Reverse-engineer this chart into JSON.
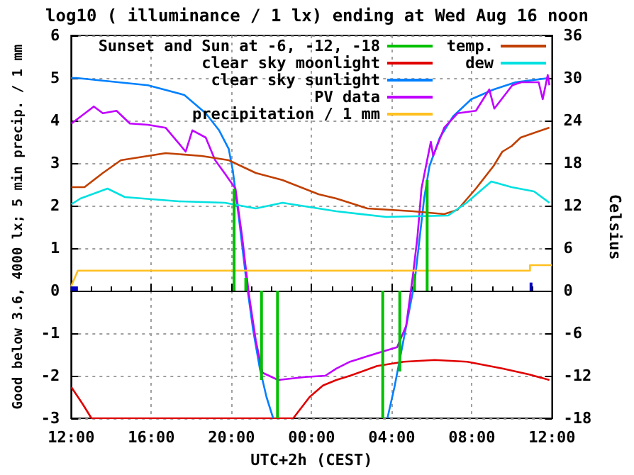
{
  "chart_data": {
    "type": "line",
    "title": "log10 ( illuminance / 1 lx) ending at Wed Aug 16 noon",
    "xlabel": "UTC+2h (CEST)",
    "ylabel": "Good below 3.6, 4000 lx; 5 min precip. / 1 mm",
    "y2label": "Celsius",
    "xlim": [
      "--08-15T12:00",
      "--08-16T12:00"
    ],
    "xticks": [
      {
        "value": "--08-15T12:00",
        "label": "12:00"
      },
      {
        "value": "--08-15T16:00",
        "label": "16:00"
      },
      {
        "value": "--08-15T20:00",
        "label": "20:00"
      },
      {
        "value": "--08-16T00:00",
        "label": "00:00"
      },
      {
        "value": "--08-16T04:00",
        "label": "04:00"
      },
      {
        "value": "--08-16T08:00",
        "label": "08:00"
      },
      {
        "value": "--08-16T12:00",
        "label": "12:00"
      }
    ],
    "ylim": [
      -3,
      6
    ],
    "yticks": [
      -3,
      -2,
      -1,
      0,
      1,
      2,
      3,
      4,
      5,
      6
    ],
    "y2lim": [
      -18,
      36
    ],
    "y2ticks": [
      -18,
      -12,
      -6,
      0,
      6,
      12,
      18,
      24,
      30,
      36
    ],
    "grid": true,
    "legend": "top",
    "marker": "none",
    "line_style": "solid",
    "series": [
      {
        "name": "Sunset and Sun at -6, -12, -18",
        "type": "bar",
        "color": "#00c000",
        "x": [
          "--08-15T20:08",
          "--08-15T20:43",
          "--08-15T21:30",
          "--08-15T22:18",
          "--08-16T03:33",
          "--08-16T04:24",
          "--08-16T05:08",
          "--08-16T05:46"
        ],
        "values": [
          2.4,
          0.3,
          -2.1,
          -3,
          -3,
          -1.9,
          0.4,
          2.6
        ]
      },
      {
        "name": "clear sky moonlight",
        "color": "#e00000",
        "x": [
          "--08-15T12:01",
          "--08-15T12:35",
          "--08-15T13:01",
          "--08-15T23:05",
          "--08-15T23:54",
          "--08-16T00:34",
          "--08-16T01:14",
          "--08-16T01:55",
          "--08-16T03:16",
          "--08-16T04:36",
          "--08-16T06:09",
          "--08-16T07:46",
          "--08-16T09:31",
          "--08-16T10:52",
          "--08-16T11:52"
        ],
        "values": [
          -2.27,
          -2.67,
          -3,
          -3,
          -2.5,
          -2.23,
          -2.1,
          -2.0,
          -1.77,
          -1.67,
          -1.63,
          -1.67,
          -1.83,
          -1.97,
          -2.1
        ]
      },
      {
        "name": "clear sky sunlight",
        "color": "#0080ff",
        "x": [
          "--08-15T12:00",
          "--08-15T12:16",
          "--08-15T15:50",
          "--08-15T17:39",
          "--08-15T18:43",
          "--08-15T19:23",
          "--08-15T19:52",
          "--08-15T20:04",
          "--08-15T20:24",
          "--08-15T20:44",
          "--08-15T21:05",
          "--08-15T21:25",
          "--08-15T21:45",
          "--08-15T22:05",
          "--08-16T01:00",
          "--08-16T03:47",
          "--08-16T04:08",
          "--08-16T05:08",
          "--08-16T05:37",
          "--08-16T05:53",
          "--08-16T06:24",
          "--08-16T07:04",
          "--08-16T07:58",
          "--08-16T09:05",
          "--08-16T10:11",
          "--08-16T11:52"
        ],
        "values": [
          5.0,
          5.0,
          4.83,
          4.6,
          4.17,
          3.77,
          3.33,
          2.83,
          1.6,
          0.27,
          -0.93,
          -1.83,
          -2.5,
          -3,
          null,
          -3,
          -2.27,
          0.17,
          2.17,
          2.93,
          3.6,
          4.1,
          4.5,
          4.73,
          4.9,
          5.0
        ]
      },
      {
        "name": "PV data",
        "color": "#c000ff",
        "x": [
          "--08-15T12:01",
          "--08-15T13:08",
          "--08-15T13:35",
          "--08-15T14:16",
          "--08-15T14:56",
          "--08-15T15:50",
          "--08-15T16:43",
          "--08-15T17:11",
          "--08-15T17:43",
          "--08-15T18:03",
          "--08-15T18:43",
          "--08-15T19:11",
          "--08-15T19:38",
          "--08-15T20:12",
          "--08-15T20:32",
          "--08-15T20:52",
          "--08-15T21:13",
          "--08-15T21:33",
          "--08-15T22:20",
          "--08-15T23:41",
          "--08-16T00:41",
          "--08-16T01:14",
          "--08-16T01:55",
          "--08-16T03:16",
          "--08-16T04:16",
          "--08-16T04:43",
          "--08-16T05:04",
          "--08-16T05:17",
          "--08-16T05:29",
          "--08-16T05:57",
          "--08-16T06:04",
          "--08-16T06:37",
          "--08-16T07:17",
          "--08-16T08:12",
          "--08-16T08:52",
          "--08-16T09:07",
          "--08-16T10:01",
          "--08-16T10:28",
          "--08-16T11:20",
          "--08-16T11:32",
          "--08-16T11:47",
          "--08-16T11:52"
        ],
        "values": [
          3.93,
          4.33,
          4.17,
          4.23,
          3.93,
          3.9,
          3.83,
          3.57,
          3.27,
          3.77,
          3.6,
          3.07,
          2.78,
          2.4,
          1.27,
          -0.07,
          -1.17,
          -1.93,
          -2.1,
          -2.03,
          -2.0,
          -1.83,
          -1.67,
          -1.47,
          -1.33,
          -0.83,
          0.4,
          1.27,
          2.4,
          3.5,
          3.17,
          3.83,
          4.17,
          4.23,
          4.73,
          4.28,
          4.83,
          4.9,
          4.9,
          4.5,
          5.07,
          4.83
        ]
      },
      {
        "name": "precipitation / 1 mm",
        "color": "#ffc020",
        "x": [
          "--08-15T12:00",
          "--08-15T12:20",
          "--08-16T10:54",
          "--08-16T10:54",
          "--08-16T12:00"
        ],
        "values": [
          0.1,
          0.47,
          0.47,
          0.6,
          0.6
        ]
      },
      {
        "type": "bar",
        "color": "#0000c0",
        "x": [
          "--08-15T12:03",
          "--08-15T12:09",
          "--08-15T12:16",
          "--08-16T10:57"
        ],
        "values": [
          0.1,
          0.1,
          0.1,
          0.19
        ]
      },
      {
        "name": "temp.",
        "axis": "y2",
        "color": "#c04000",
        "x": [
          "--08-15T12:01",
          "--08-15T12:40",
          "--08-15T13:35",
          "--08-15T14:29",
          "--08-15T16:43",
          "--08-15T18:31",
          "--08-15T19:52",
          "--08-15T21:13",
          "--08-15T22:33",
          "--08-16T00:21",
          "--08-16T01:14",
          "--08-16T02:47",
          "--08-16T05:04",
          "--08-16T06:37",
          "--08-16T07:17",
          "--08-16T08:12",
          "--08-16T09:05",
          "--08-16T09:31",
          "--08-16T09:59",
          "--08-16T10:26",
          "--08-16T11:52"
        ],
        "values": [
          14.6,
          14.6,
          16.6,
          18.4,
          19.4,
          19.0,
          18.4,
          16.6,
          15.6,
          13.6,
          13.0,
          11.6,
          11.2,
          10.8,
          11.4,
          14.4,
          17.6,
          19.6,
          20.4,
          21.6,
          23.0
        ]
      },
      {
        "name": "dew",
        "axis": "y2",
        "color": "#00e0e0",
        "x": [
          "--08-15T12:01",
          "--08-15T12:28",
          "--08-15T13:49",
          "--08-15T14:41",
          "--08-15T17:23",
          "--08-15T19:40",
          "--08-15T21:13",
          "--08-15T22:33",
          "--08-16T01:14",
          "--08-16T03:43",
          "--08-16T06:49",
          "--08-16T07:44",
          "--08-16T08:58",
          "--08-16T09:59",
          "--08-16T11:06",
          "--08-16T11:52"
        ],
        "values": [
          12.2,
          13.0,
          14.4,
          13.2,
          12.6,
          12.4,
          11.6,
          12.4,
          11.2,
          10.4,
          10.6,
          12.4,
          15.4,
          14.6,
          14.0,
          12.4
        ]
      }
    ]
  }
}
